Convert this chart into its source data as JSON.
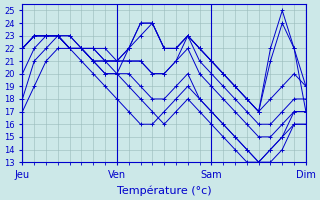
{
  "xlabel": "Température (°c)",
  "day_labels": [
    "Jeu",
    "Ven",
    "Sam",
    "Dim"
  ],
  "day_positions": [
    0,
    8,
    16,
    24
  ],
  "ylim": [
    13,
    25.5
  ],
  "yticks": [
    13,
    14,
    15,
    16,
    17,
    18,
    19,
    20,
    21,
    22,
    23,
    24,
    25
  ],
  "xlim": [
    0,
    24
  ],
  "bg_color": "#cce8e8",
  "line_color": "#0000cc",
  "grid_color": "#99bbbb",
  "series": [
    [
      17,
      19,
      21,
      22,
      22,
      21,
      20,
      19,
      18,
      17,
      16,
      16,
      17,
      18,
      19,
      18,
      17,
      16,
      15,
      14,
      13,
      13,
      14,
      16,
      16
    ],
    [
      18,
      21,
      22,
      23,
      23,
      22,
      21,
      20,
      20,
      19,
      18,
      17,
      16,
      17,
      18,
      17,
      16,
      15,
      14,
      13,
      13,
      14,
      15,
      16,
      16
    ],
    [
      20,
      22,
      23,
      23,
      23,
      22,
      21,
      21,
      20,
      20,
      19,
      18,
      18,
      19,
      20,
      18,
      17,
      16,
      15,
      14,
      13,
      14,
      15,
      17,
      17
    ],
    [
      22,
      23,
      23,
      23,
      22,
      22,
      22,
      22,
      21,
      21,
      21,
      20,
      20,
      21,
      22,
      20,
      19,
      18,
      17,
      16,
      15,
      15,
      16,
      17,
      17
    ],
    [
      22,
      23,
      23,
      23,
      22,
      22,
      22,
      21,
      21,
      21,
      21,
      20,
      20,
      21,
      23,
      21,
      20,
      19,
      18,
      17,
      16,
      16,
      17,
      18,
      18
    ],
    [
      22,
      23,
      23,
      23,
      22,
      22,
      22,
      21,
      21,
      22,
      23,
      24,
      22,
      22,
      23,
      22,
      21,
      20,
      19,
      18,
      17,
      18,
      19,
      20,
      19
    ],
    [
      22,
      23,
      23,
      23,
      22,
      22,
      21,
      21,
      21,
      22,
      24,
      24,
      22,
      22,
      23,
      22,
      21,
      20,
      19,
      18,
      17,
      21,
      24,
      22,
      19
    ],
    [
      22,
      23,
      23,
      23,
      22,
      22,
      21,
      20,
      20,
      22,
      24,
      24,
      22,
      22,
      23,
      22,
      21,
      20,
      19,
      18,
      17,
      22,
      25,
      22,
      17
    ]
  ]
}
